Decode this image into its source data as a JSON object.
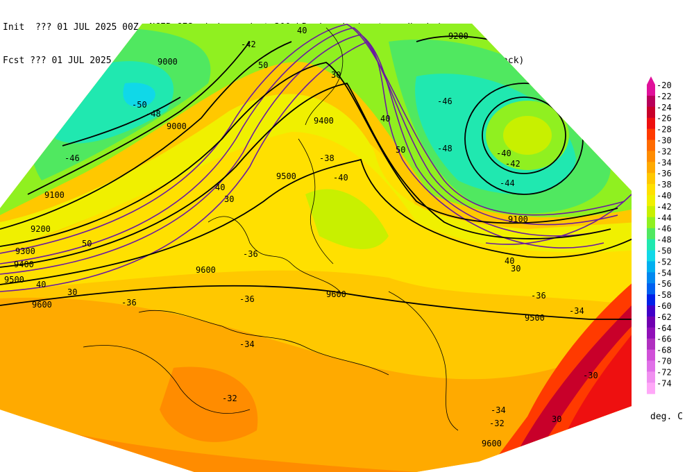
{
  "header": {
    "init_line": "Init  ??? 01 JUL 2025 00Z  NCEP GFS wind speed at 300 hPa in m/s (contours/barbs)",
    "fcst_line": "Fcst ??? 01 JUL 2025 00Z  temperature (shaded/dotted) and geopotential height at 300 hPa (black)"
  },
  "legend": {
    "labels": [
      "-20",
      "-22",
      "-24",
      "-26",
      "-28",
      "-30",
      "-32",
      "-34",
      "-36",
      "-38",
      "-40",
      "-42",
      "-44",
      "-46",
      "-48",
      "-50",
      "-52",
      "-54",
      "-56",
      "-58",
      "-60",
      "-62",
      "-64",
      "-66",
      "-68",
      "-70",
      "-72",
      "-74"
    ],
    "colors": [
      "#e0109a",
      "#b8005a",
      "#c8002a",
      "#ee1010",
      "#ff3a00",
      "#ff6a00",
      "#ff8c00",
      "#ffaa00",
      "#ffc800",
      "#ffe000",
      "#f0f000",
      "#c8f000",
      "#90f020",
      "#50e860",
      "#20e8b0",
      "#10d8e8",
      "#00b0f0",
      "#0088f0",
      "#0060f0",
      "#0020e8",
      "#4000c8",
      "#7000b0",
      "#9010b8",
      "#b030c0",
      "#d050d8",
      "#e070e8",
      "#f090f0",
      "#ffa8f8"
    ],
    "units": "deg. C"
  },
  "map_labels": {
    "heights": [
      "9000",
      "9100",
      "9200",
      "9300",
      "9400",
      "9500",
      "9600"
    ],
    "temps": [
      "-36",
      "-38",
      "-40",
      "-42",
      "-44",
      "-46",
      "-48",
      "-50",
      "-34",
      "-32",
      "-30"
    ],
    "winds": [
      "30",
      "40",
      "50"
    ]
  }
}
